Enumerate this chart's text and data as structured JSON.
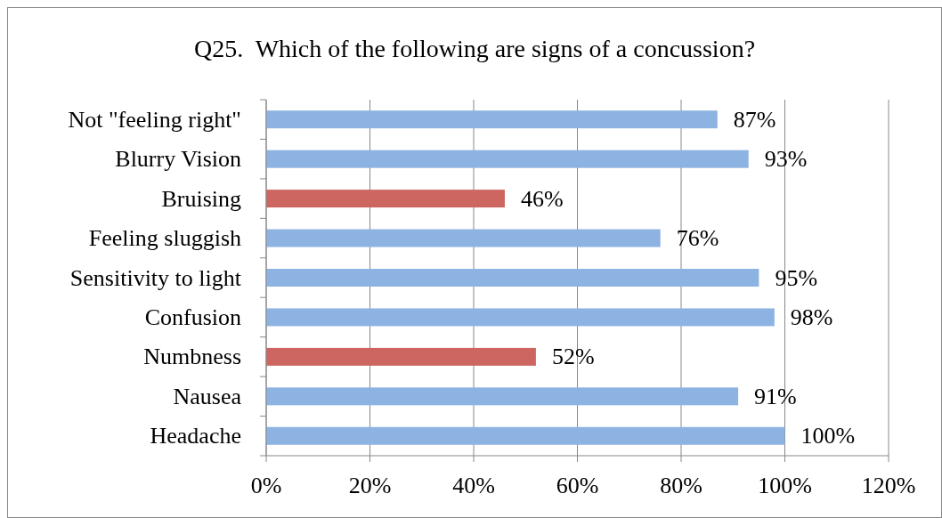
{
  "chart_data": {
    "type": "bar",
    "orientation": "horizontal",
    "title": "Q25.  Which of the following are signs of a concussion?",
    "categories": [
      "Not \"feeling right\"",
      "Blurry Vision",
      "Bruising",
      "Feeling sluggish",
      "Sensitivity to light",
      "Confusion",
      "Numbness",
      "Nausea",
      "Headache"
    ],
    "values": [
      87,
      93,
      46,
      76,
      95,
      98,
      52,
      91,
      100
    ],
    "colors": [
      "#8db3e2",
      "#8db3e2",
      "#cd6660",
      "#8db3e2",
      "#8db3e2",
      "#8db3e2",
      "#cd6660",
      "#8db3e2",
      "#8db3e2"
    ],
    "value_labels": [
      "87%",
      "93%",
      "46%",
      "76%",
      "95%",
      "98%",
      "52%",
      "91%",
      "100%"
    ],
    "xlim": [
      0,
      120
    ],
    "xticks": [
      {
        "value": 0,
        "label": "0%"
      },
      {
        "value": 20,
        "label": "20%"
      },
      {
        "value": 40,
        "label": "40%"
      },
      {
        "value": 60,
        "label": "60%"
      },
      {
        "value": 80,
        "label": "80%"
      },
      {
        "value": 100,
        "label": "100%"
      },
      {
        "value": 120,
        "label": "120%"
      }
    ],
    "grid": "x"
  }
}
